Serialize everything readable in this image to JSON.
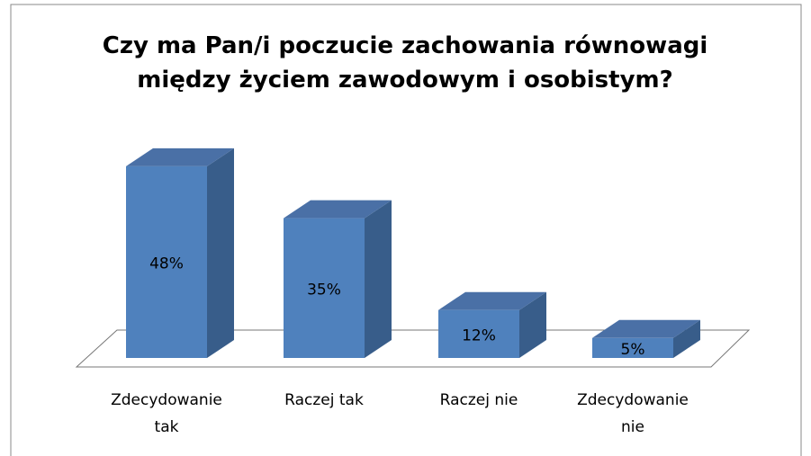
{
  "chart_data": {
    "type": "bar3d",
    "title": "Czy ma Pan/i poczucie zachowania równowagi między życiem zawodowym i osobistym?",
    "categories": [
      "Zdecydowanie tak",
      "Raczej tak",
      "Raczej nie",
      "Zdecydowanie nie"
    ],
    "values": [
      48,
      35,
      12,
      5
    ],
    "value_labels": [
      "48%",
      "35%",
      "12%",
      "5%"
    ],
    "color": "#4f81bd"
  }
}
